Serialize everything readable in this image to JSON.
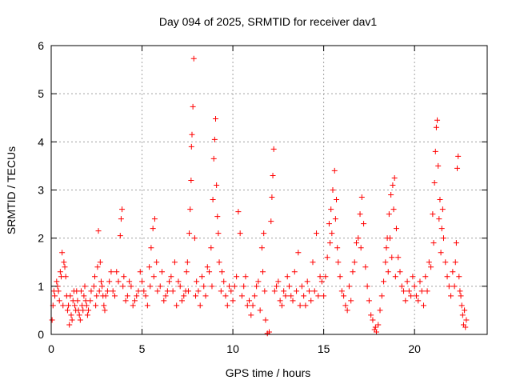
{
  "chart_data": {
    "type": "scatter",
    "title": "Day 094 of 2025, SRMTID for receiver dav1",
    "xlabel": "GPS time / hours",
    "ylabel": "SRMTID / TECUs",
    "xlim": [
      0,
      24
    ],
    "ylim": [
      0,
      6
    ],
    "xticks": [
      0,
      5,
      10,
      15,
      20
    ],
    "yticks": [
      0,
      1,
      2,
      3,
      4,
      5,
      6
    ],
    "grid": true,
    "marker": "+",
    "series_color": "#ff0000",
    "series": [
      {
        "name": "SRMTID",
        "points": [
          [
            0.1,
            0.6
          ],
          [
            0.2,
            0.8
          ],
          [
            0.3,
            1.1
          ],
          [
            0.4,
            0.9
          ],
          [
            0.5,
            1.3
          ],
          [
            0.6,
            1.7
          ],
          [
            0.7,
            1.5
          ],
          [
            0.8,
            1.2
          ],
          [
            0.9,
            0.5
          ],
          [
            1.0,
            0.2
          ],
          [
            1.1,
            0.4
          ],
          [
            1.2,
            0.7
          ],
          [
            1.3,
            0.6
          ],
          [
            1.4,
            0.9
          ],
          [
            1.5,
            0.5
          ],
          [
            1.6,
            0.3
          ],
          [
            1.7,
            0.6
          ],
          [
            1.8,
            0.8
          ],
          [
            1.9,
            0.7
          ],
          [
            2.0,
            0.4
          ],
          [
            2.2,
            0.9
          ],
          [
            2.4,
            1.2
          ],
          [
            2.5,
            0.8
          ],
          [
            2.6,
            2.15
          ],
          [
            2.7,
            1.5
          ],
          [
            2.8,
            1.0
          ],
          [
            2.9,
            0.6
          ],
          [
            3.0,
            0.8
          ],
          [
            3.2,
            1.1
          ],
          [
            3.4,
            0.9
          ],
          [
            3.6,
            1.3
          ],
          [
            3.8,
            2.05
          ],
          [
            3.85,
            2.4
          ],
          [
            3.9,
            2.6
          ],
          [
            4.0,
            1.2
          ],
          [
            4.2,
            0.8
          ],
          [
            4.4,
            1.0
          ],
          [
            4.6,
            0.7
          ],
          [
            4.8,
            0.9
          ],
          [
            5.0,
            1.1
          ],
          [
            5.2,
            0.8
          ],
          [
            5.4,
            1.4
          ],
          [
            5.5,
            1.8
          ],
          [
            5.6,
            2.2
          ],
          [
            5.7,
            2.4
          ],
          [
            5.8,
            1.5
          ],
          [
            6.0,
            1.0
          ],
          [
            6.2,
            0.7
          ],
          [
            6.4,
            0.9
          ],
          [
            6.6,
            1.2
          ],
          [
            6.8,
            1.5
          ],
          [
            7.0,
            1.1
          ],
          [
            7.2,
            0.7
          ],
          [
            7.4,
            0.9
          ],
          [
            7.5,
            1.5
          ],
          [
            7.6,
            2.1
          ],
          [
            7.65,
            2.6
          ],
          [
            7.7,
            3.2
          ],
          [
            7.72,
            3.9
          ],
          [
            7.75,
            4.15
          ],
          [
            7.8,
            4.73
          ],
          [
            7.85,
            5.73
          ],
          [
            7.9,
            2.0
          ],
          [
            8.0,
            1.1
          ],
          [
            8.2,
            0.6
          ],
          [
            8.4,
            1.0
          ],
          [
            8.6,
            1.4
          ],
          [
            8.8,
            1.8
          ],
          [
            8.9,
            2.8
          ],
          [
            8.95,
            3.65
          ],
          [
            9.0,
            4.05
          ],
          [
            9.05,
            4.48
          ],
          [
            9.1,
            3.1
          ],
          [
            9.15,
            2.45
          ],
          [
            9.2,
            2.1
          ],
          [
            9.4,
            1.3
          ],
          [
            9.6,
            0.8
          ],
          [
            9.8,
            1.0
          ],
          [
            10.0,
            0.7
          ],
          [
            10.2,
            1.2
          ],
          [
            10.3,
            2.55
          ],
          [
            10.4,
            2.1
          ],
          [
            10.6,
            1.0
          ],
          [
            10.8,
            0.6
          ],
          [
            11.0,
            0.4
          ],
          [
            11.2,
            0.8
          ],
          [
            11.4,
            1.1
          ],
          [
            11.6,
            1.8
          ],
          [
            11.7,
            2.1
          ],
          [
            11.8,
            0.3
          ],
          [
            11.9,
            0.02
          ],
          [
            12.0,
            0.05
          ],
          [
            12.1,
            2.35
          ],
          [
            12.15,
            2.85
          ],
          [
            12.2,
            3.3
          ],
          [
            12.25,
            3.85
          ],
          [
            12.4,
            1.0
          ],
          [
            12.6,
            0.7
          ],
          [
            12.8,
            0.9
          ],
          [
            13.0,
            1.2
          ],
          [
            13.2,
            0.8
          ],
          [
            13.4,
            1.3
          ],
          [
            13.6,
            1.7
          ],
          [
            13.8,
            1.0
          ],
          [
            14.0,
            0.6
          ],
          [
            14.2,
            0.9
          ],
          [
            14.4,
            1.5
          ],
          [
            14.6,
            2.1
          ],
          [
            14.8,
            1.2
          ],
          [
            15.0,
            0.8
          ],
          [
            15.2,
            1.6
          ],
          [
            15.3,
            2.3
          ],
          [
            15.4,
            2.6
          ],
          [
            15.5,
            3.0
          ],
          [
            15.6,
            3.4
          ],
          [
            15.7,
            2.8
          ],
          [
            15.8,
            1.5
          ],
          [
            16.0,
            0.9
          ],
          [
            16.2,
            0.6
          ],
          [
            16.4,
            1.0
          ],
          [
            16.6,
            1.3
          ],
          [
            16.8,
            1.9
          ],
          [
            17.0,
            2.5
          ],
          [
            17.1,
            2.85
          ],
          [
            17.2,
            2.3
          ],
          [
            17.4,
            1.0
          ],
          [
            17.6,
            0.4
          ],
          [
            17.8,
            0.1
          ],
          [
            17.9,
            0.05
          ],
          [
            18.0,
            0.2
          ],
          [
            18.2,
            0.8
          ],
          [
            18.4,
            1.5
          ],
          [
            18.5,
            2.0
          ],
          [
            18.6,
            2.5
          ],
          [
            18.7,
            2.9
          ],
          [
            18.8,
            3.1
          ],
          [
            18.9,
            3.25
          ],
          [
            19.0,
            2.2
          ],
          [
            19.2,
            1.3
          ],
          [
            19.4,
            0.9
          ],
          [
            19.6,
            1.1
          ],
          [
            19.8,
            0.8
          ],
          [
            20.0,
            1.0
          ],
          [
            20.2,
            0.7
          ],
          [
            20.4,
            0.9
          ],
          [
            20.6,
            1.2
          ],
          [
            20.8,
            1.5
          ],
          [
            21.0,
            2.5
          ],
          [
            21.1,
            3.15
          ],
          [
            21.15,
            3.8
          ],
          [
            21.2,
            4.3
          ],
          [
            21.25,
            4.45
          ],
          [
            21.3,
            3.5
          ],
          [
            21.4,
            2.8
          ],
          [
            21.5,
            2.2
          ],
          [
            21.6,
            2.0
          ],
          [
            21.8,
            1.2
          ],
          [
            22.0,
            0.8
          ],
          [
            22.2,
            1.0
          ],
          [
            22.3,
            1.9
          ],
          [
            22.35,
            3.45
          ],
          [
            22.4,
            3.7
          ],
          [
            22.5,
            0.9
          ],
          [
            22.6,
            0.6
          ],
          [
            22.7,
            0.2
          ],
          [
            22.8,
            0.15
          ],
          [
            0.05,
            0.3
          ],
          [
            0.15,
            0.9
          ],
          [
            0.35,
            1.0
          ],
          [
            0.45,
            0.7
          ],
          [
            0.55,
            1.2
          ],
          [
            0.65,
            0.6
          ],
          [
            0.75,
            1.4
          ],
          [
            0.85,
            0.8
          ],
          [
            0.95,
            0.6
          ],
          [
            1.05,
            0.8
          ],
          [
            1.15,
            0.3
          ],
          [
            1.25,
            0.9
          ],
          [
            1.35,
            0.5
          ],
          [
            1.45,
            0.7
          ],
          [
            1.55,
            0.4
          ],
          [
            1.65,
            0.9
          ],
          [
            1.75,
            0.5
          ],
          [
            1.85,
            1.0
          ],
          [
            1.95,
            0.6
          ],
          [
            2.05,
            0.5
          ],
          [
            2.15,
            0.7
          ],
          [
            2.35,
            1.0
          ],
          [
            2.45,
            0.6
          ],
          [
            2.55,
            1.4
          ],
          [
            2.65,
            0.9
          ],
          [
            2.75,
            1.1
          ],
          [
            2.85,
            0.8
          ],
          [
            2.95,
            0.5
          ],
          [
            3.1,
            0.9
          ],
          [
            3.3,
            1.3
          ],
          [
            3.5,
            0.8
          ],
          [
            3.7,
            1.1
          ],
          [
            3.95,
            1.0
          ],
          [
            4.1,
            0.7
          ],
          [
            4.3,
            1.1
          ],
          [
            4.5,
            0.6
          ],
          [
            4.7,
            0.8
          ],
          [
            4.9,
            1.3
          ],
          [
            5.1,
            0.9
          ],
          [
            5.3,
            0.6
          ],
          [
            5.45,
            1.0
          ],
          [
            5.65,
            1.2
          ],
          [
            5.85,
            0.9
          ],
          [
            6.1,
            1.3
          ],
          [
            6.3,
            0.8
          ],
          [
            6.5,
            1.1
          ],
          [
            6.7,
            0.9
          ],
          [
            6.9,
            0.6
          ],
          [
            7.1,
            1.0
          ],
          [
            7.3,
            0.8
          ],
          [
            7.45,
            1.3
          ],
          [
            7.55,
            0.9
          ],
          [
            7.95,
            0.8
          ],
          [
            8.1,
            0.9
          ],
          [
            8.3,
            1.2
          ],
          [
            8.5,
            0.8
          ],
          [
            8.7,
            1.3
          ],
          [
            8.85,
            1.0
          ],
          [
            9.25,
            1.5
          ],
          [
            9.35,
            0.9
          ],
          [
            9.5,
            1.1
          ],
          [
            9.7,
            0.6
          ],
          [
            9.9,
            0.9
          ],
          [
            10.1,
            1.0
          ],
          [
            10.5,
            0.8
          ],
          [
            10.7,
            1.2
          ],
          [
            10.9,
            0.7
          ],
          [
            11.1,
            0.6
          ],
          [
            11.3,
            1.0
          ],
          [
            11.5,
            0.5
          ],
          [
            11.65,
            1.3
          ],
          [
            11.75,
            0.9
          ],
          [
            12.3,
            0.9
          ],
          [
            12.5,
            1.1
          ],
          [
            12.7,
            0.6
          ],
          [
            12.9,
            0.8
          ],
          [
            13.1,
            1.0
          ],
          [
            13.3,
            0.7
          ],
          [
            13.5,
            0.9
          ],
          [
            13.7,
            0.6
          ],
          [
            13.9,
            0.8
          ],
          [
            14.1,
            1.1
          ],
          [
            14.3,
            0.7
          ],
          [
            14.5,
            0.9
          ],
          [
            14.7,
            0.8
          ],
          [
            14.9,
            1.1
          ],
          [
            15.1,
            1.2
          ],
          [
            15.35,
            1.9
          ],
          [
            15.45,
            2.1
          ],
          [
            15.65,
            2.4
          ],
          [
            15.75,
            1.8
          ],
          [
            15.9,
            1.2
          ],
          [
            16.1,
            0.8
          ],
          [
            16.3,
            0.5
          ],
          [
            16.5,
            0.7
          ],
          [
            16.7,
            1.5
          ],
          [
            16.9,
            2.0
          ],
          [
            17.05,
            1.8
          ],
          [
            17.3,
            1.4
          ],
          [
            17.5,
            0.7
          ],
          [
            17.7,
            0.3
          ],
          [
            17.85,
            0.15
          ],
          [
            18.1,
            0.5
          ],
          [
            18.3,
            1.1
          ],
          [
            18.45,
            1.8
          ],
          [
            18.55,
            1.3
          ],
          [
            18.65,
            2.0
          ],
          [
            18.75,
            1.6
          ],
          [
            18.85,
            2.6
          ],
          [
            18.95,
            1.2
          ],
          [
            19.1,
            1.6
          ],
          [
            19.3,
            1.0
          ],
          [
            19.5,
            0.7
          ],
          [
            19.7,
            0.9
          ],
          [
            19.9,
            1.2
          ],
          [
            20.1,
            0.8
          ],
          [
            20.3,
            1.1
          ],
          [
            20.5,
            0.6
          ],
          [
            20.7,
            0.9
          ],
          [
            20.9,
            1.4
          ],
          [
            21.05,
            1.9
          ],
          [
            21.35,
            2.4
          ],
          [
            21.45,
            1.7
          ],
          [
            21.55,
            2.6
          ],
          [
            21.7,
            1.5
          ],
          [
            21.9,
            1.0
          ],
          [
            22.1,
            1.3
          ],
          [
            22.25,
            1.5
          ],
          [
            22.45,
            1.2
          ],
          [
            22.55,
            0.8
          ],
          [
            22.65,
            0.4
          ],
          [
            22.75,
            0.5
          ],
          [
            22.85,
            0.3
          ]
        ]
      }
    ]
  }
}
